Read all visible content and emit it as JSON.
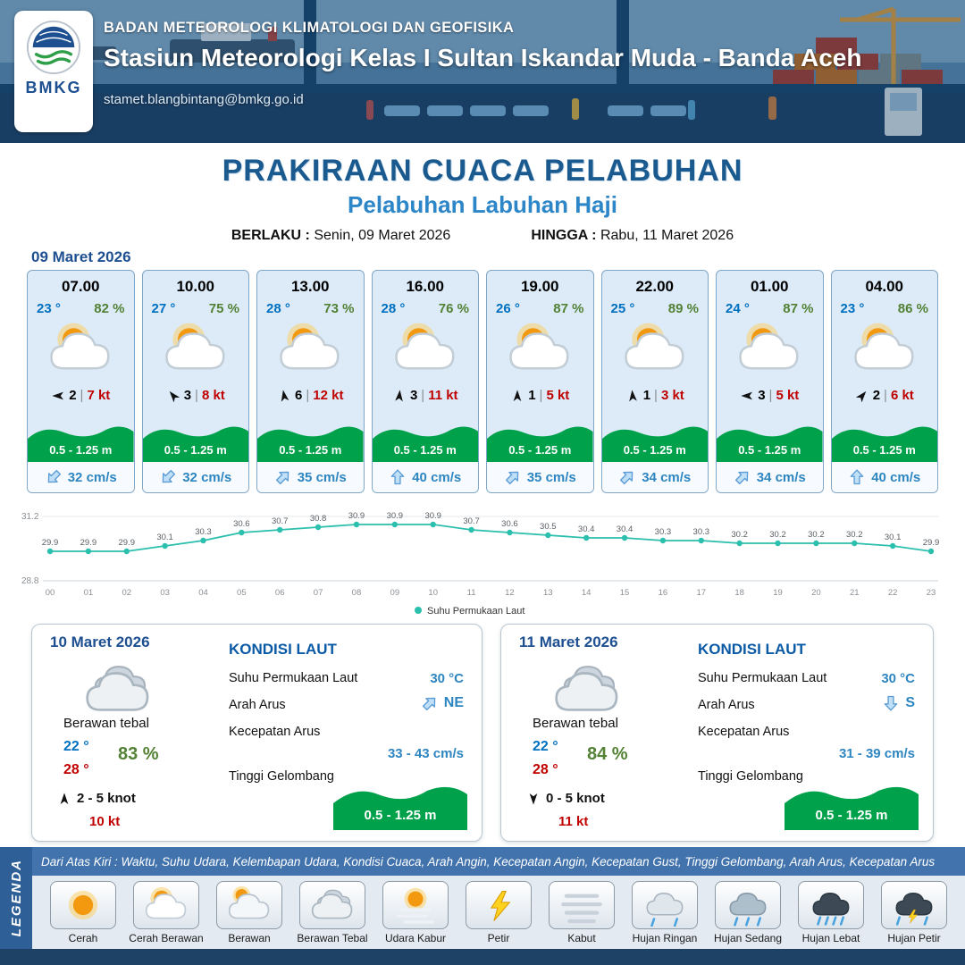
{
  "header": {
    "org": "BADAN METEOROLOGI KLIMATOLOGI DAN GEOFISIKA",
    "station": "Stasiun Meteorologi Kelas I Sultan Iskandar Muda - Banda Aceh",
    "email": "stamet.blangbintang@bmkg.go.id",
    "logo_text": "BMKG"
  },
  "title": {
    "main": "PRAKIRAAN CUACA PELABUHAN",
    "subtitle": "Pelabuhan Labuhan Haji"
  },
  "validity": {
    "berlaku_label": "BERLAKU :",
    "berlaku_value": "Senin, 09 Maret 2026",
    "hingga_label": "HINGGA :",
    "hingga_value": "Rabu, 11 Maret 2026"
  },
  "day1": {
    "date": "09 Maret 2026",
    "hours": [
      {
        "time": "07.00",
        "temp": "23 °",
        "rh": "82 %",
        "icon": "cerah-berawan",
        "wind_val": "2",
        "wind_kt": "7 kt",
        "wind_rot": 270,
        "wave": "0.5 - 1.25 m",
        "current": "32 cm/s",
        "current_rot": 225
      },
      {
        "time": "10.00",
        "temp": "27 °",
        "rh": "75 %",
        "icon": "cerah-berawan",
        "wind_val": "3",
        "wind_kt": "8 kt",
        "wind_rot": 320,
        "wave": "0.5 - 1.25 m",
        "current": "32 cm/s",
        "current_rot": 225
      },
      {
        "time": "13.00",
        "temp": "28 °",
        "rh": "73 %",
        "icon": "cerah-berawan",
        "wind_val": "6",
        "wind_kt": "12 kt",
        "wind_rot": 350,
        "wave": "0.5 - 1.25 m",
        "current": "35 cm/s",
        "current_rot": 45
      },
      {
        "time": "16.00",
        "temp": "28 °",
        "rh": "76 %",
        "icon": "cerah-berawan",
        "wind_val": "3",
        "wind_kt": "11 kt",
        "wind_rot": 5,
        "wave": "0.5 - 1.25 m",
        "current": "40 cm/s",
        "current_rot": 0
      },
      {
        "time": "19.00",
        "temp": "26 °",
        "rh": "87 %",
        "icon": "cerah-berawan",
        "wind_val": "1",
        "wind_kt": "5 kt",
        "wind_rot": 0,
        "wave": "0.5 - 1.25 m",
        "current": "35 cm/s",
        "current_rot": 45
      },
      {
        "time": "22.00",
        "temp": "25 °",
        "rh": "89 %",
        "icon": "cerah-berawan",
        "wind_val": "1",
        "wind_kt": "3 kt",
        "wind_rot": 355,
        "wave": "0.5 - 1.25 m",
        "current": "34 cm/s",
        "current_rot": 45
      },
      {
        "time": "01.00",
        "temp": "24 °",
        "rh": "87 %",
        "icon": "cerah-berawan",
        "wind_val": "3",
        "wind_kt": "5 kt",
        "wind_rot": 270,
        "wave": "0.5 - 1.25 m",
        "current": "34 cm/s",
        "current_rot": 45
      },
      {
        "time": "04.00",
        "temp": "23 °",
        "rh": "86 %",
        "icon": "cerah-berawan",
        "wind_val": "2",
        "wind_kt": "6 kt",
        "wind_rot": 40,
        "wave": "0.5 - 1.25 m",
        "current": "40 cm/s",
        "current_rot": 0
      }
    ]
  },
  "chart_data": {
    "type": "line",
    "legend": "Suhu Permukaan Laut",
    "x": [
      "00",
      "01",
      "02",
      "03",
      "04",
      "05",
      "06",
      "07",
      "08",
      "09",
      "10",
      "11",
      "12",
      "13",
      "14",
      "15",
      "16",
      "17",
      "18",
      "19",
      "20",
      "21",
      "22",
      "23"
    ],
    "values": [
      29.9,
      29.9,
      29.9,
      30.1,
      30.3,
      30.6,
      30.7,
      30.8,
      30.9,
      30.9,
      30.9,
      30.7,
      30.6,
      30.5,
      30.4,
      30.4,
      30.3,
      30.3,
      30.2,
      30.2,
      30.2,
      30.2,
      30.1,
      29.9
    ],
    "ylim": [
      28.8,
      31.2
    ],
    "line_color": "#2bbfad",
    "grid": true,
    "legend_position": "bottom-center"
  },
  "days": [
    {
      "date": "10 Maret 2026",
      "icon": "berawan-tebal",
      "condition": "Berawan tebal",
      "tmin": "22 °",
      "tmax": "28 °",
      "rh": "83 %",
      "wind_rot": 0,
      "wind_range": "2 - 5 knot",
      "gust": "10 kt",
      "sea": {
        "heading": "KONDISI LAUT",
        "sst_label": "Suhu Permukaan Laut",
        "sst": "30 °C",
        "dir_label": "Arah Arus",
        "dir": "NE",
        "dir_rot": 45,
        "speed_label": "Kecepatan Arus",
        "speed": "33 - 43 cm/s",
        "wave_label": "Tinggi Gelombang",
        "wave": "0.5 - 1.25 m"
      }
    },
    {
      "date": "11 Maret 2026",
      "icon": "berawan-tebal",
      "condition": "Berawan tebal",
      "tmin": "22 °",
      "tmax": "28 °",
      "rh": "84 %",
      "wind_rot": 180,
      "wind_range": "0 - 5 knot",
      "gust": "11 kt",
      "sea": {
        "heading": "KONDISI LAUT",
        "sst_label": "Suhu Permukaan Laut",
        "sst": "30 °C",
        "dir_label": "Arah Arus",
        "dir": "S",
        "dir_rot": 180,
        "speed_label": "Kecepatan Arus",
        "speed": "31 - 39 cm/s",
        "wave_label": "Tinggi Gelombang",
        "wave": "0.5 - 1.25 m"
      }
    }
  ],
  "legend": {
    "sidebar_label": "LEGENDA",
    "note": "Dari Atas Kiri : Waktu, Suhu Udara, Kelembapan Udara, Kondisi Cuaca, Arah Angin, Kecepatan Angin, Kecepatan Gust, Tinggi Gelombang, Arah Arus, Kecepatan Arus",
    "items": [
      {
        "label": "Cerah",
        "type": "cerah"
      },
      {
        "label": "Cerah Berawan",
        "type": "cerah-berawan"
      },
      {
        "label": "Berawan",
        "type": "berawan"
      },
      {
        "label": "Berawan Tebal",
        "type": "berawan-tebal"
      },
      {
        "label": "Udara Kabur",
        "type": "udara-kabur"
      },
      {
        "label": "Petir",
        "type": "petir"
      },
      {
        "label": "Kabut",
        "type": "kabut"
      },
      {
        "label": "Hujan Ringan",
        "type": "hujan-ringan"
      },
      {
        "label": "Hujan Sedang",
        "type": "hujan-sedang"
      },
      {
        "label": "Hujan Lebat",
        "type": "hujan-lebat"
      },
      {
        "label": "Hujan Petir",
        "type": "hujan-petir"
      }
    ]
  },
  "colors": {
    "header_bg": "#24507c",
    "title_blue": "#1b5a8f",
    "subtitle_blue": "#2d86c8",
    "temp_blue": "#0070c0",
    "humidity_green": "#538135",
    "wind_red": "#c00000",
    "wave_green": "#00a14b",
    "sea_value_blue": "#2e86c1",
    "chart_line": "#2bbfad"
  }
}
